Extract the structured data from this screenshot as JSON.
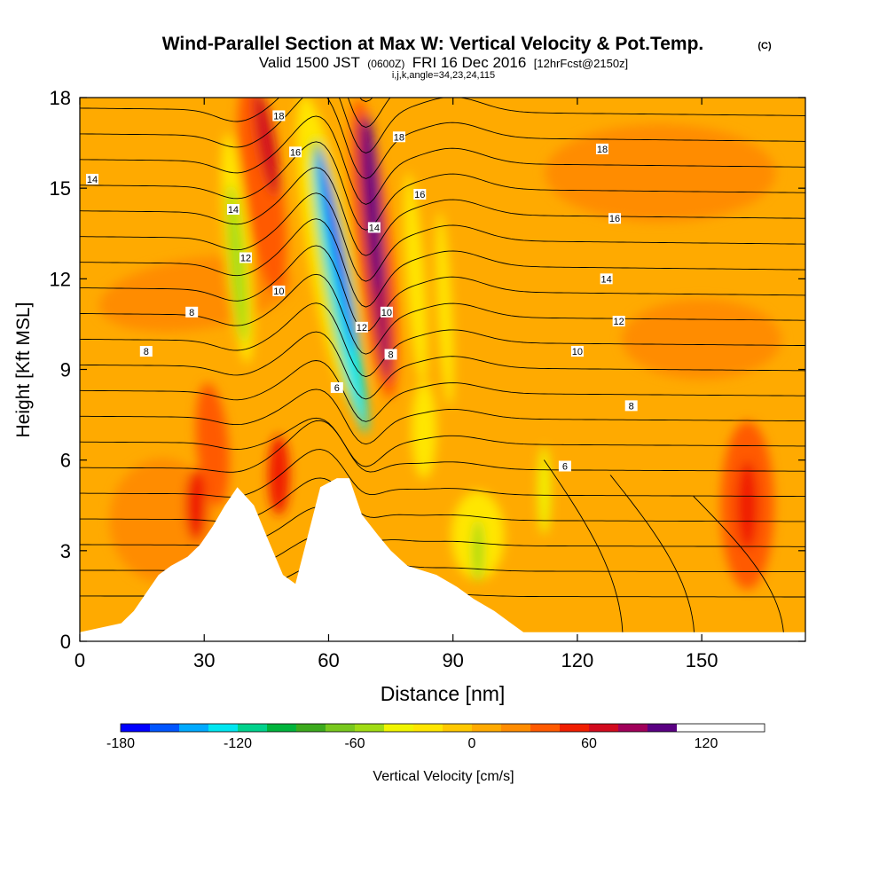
{
  "header": {
    "title": "Wind-Parallel Section at Max W: Vertical Velocity & Pot.Temp.",
    "copyright": "(C)",
    "valid_prefix": "Valid 1500 JST",
    "valid_utc": "(0600Z)",
    "valid_date": "FRI 16 Dec 2016",
    "forecast": "[12hrFcst@2150z]",
    "indices": "i,j,k,angle=34,23,24,115"
  },
  "chart_data": {
    "type": "heatmap",
    "xlabel": "Distance [nm]",
    "ylabel": "Height [Kft MSL]",
    "xlim": [
      0,
      175
    ],
    "ylim": [
      0,
      18
    ],
    "x_ticks": [
      "0",
      "30",
      "60",
      "90",
      "120",
      "150"
    ],
    "y_ticks": [
      "0",
      "3",
      "6",
      "9",
      "12",
      "15",
      "18"
    ],
    "colorbar": {
      "label": "Vertical Velocity [cm/s]",
      "tick_labels": [
        "-180",
        "-120",
        "-60",
        "0",
        "60",
        "120"
      ],
      "levels": [
        -180,
        -165,
        -150,
        -135,
        -120,
        -105,
        -90,
        -75,
        -60,
        -45,
        -30,
        -15,
        0,
        15,
        30,
        45,
        60,
        75,
        90,
        105,
        120,
        135,
        150
      ],
      "colors": [
        "#0000ff",
        "#0055ff",
        "#00aaff",
        "#00e6f0",
        "#00d28c",
        "#00b43c",
        "#3caa1e",
        "#78c81e",
        "#a0dc14",
        "#f0f500",
        "#ffe600",
        "#ffc800",
        "#ffaa00",
        "#ff8c00",
        "#ff5a00",
        "#f01e00",
        "#d20a1e",
        "#a0005a",
        "#5a0082"
      ]
    },
    "contours": {
      "variable": "Potential Temperature",
      "levels": [
        6,
        8,
        10,
        12,
        14,
        16,
        18
      ],
      "labels": [
        {
          "text": "18",
          "x": 48,
          "y": 17.4
        },
        {
          "text": "16",
          "x": 52,
          "y": 16.2
        },
        {
          "text": "14",
          "x": 3,
          "y": 15.3
        },
        {
          "text": "14",
          "x": 37,
          "y": 14.3
        },
        {
          "text": "12",
          "x": 40,
          "y": 12.7
        },
        {
          "text": "10",
          "x": 48,
          "y": 11.6
        },
        {
          "text": "8",
          "x": 27,
          "y": 10.9
        },
        {
          "text": "8",
          "x": 16,
          "y": 9.6
        },
        {
          "text": "18",
          "x": 77,
          "y": 16.7
        },
        {
          "text": "16",
          "x": 82,
          "y": 14.8
        },
        {
          "text": "14",
          "x": 71,
          "y": 13.7
        },
        {
          "text": "12",
          "x": 68,
          "y": 10.4
        },
        {
          "text": "10",
          "x": 74,
          "y": 10.9
        },
        {
          "text": "8",
          "x": 75,
          "y": 9.5
        },
        {
          "text": "6",
          "x": 62,
          "y": 8.4
        },
        {
          "text": "18",
          "x": 126,
          "y": 16.3
        },
        {
          "text": "16",
          "x": 129,
          "y": 14.0
        },
        {
          "text": "14",
          "x": 127,
          "y": 12.0
        },
        {
          "text": "12",
          "x": 130,
          "y": 10.6
        },
        {
          "text": "10",
          "x": 120,
          "y": 9.6
        },
        {
          "text": "8",
          "x": 133,
          "y": 7.8
        },
        {
          "text": "6",
          "x": 117,
          "y": 5.8
        }
      ]
    },
    "terrain": [
      [
        0,
        0.3
      ],
      [
        10,
        0.6
      ],
      [
        13,
        1.0
      ],
      [
        16,
        1.6
      ],
      [
        19,
        2.2
      ],
      [
        22,
        2.5
      ],
      [
        26,
        2.8
      ],
      [
        29,
        3.2
      ],
      [
        32,
        3.8
      ],
      [
        35,
        4.5
      ],
      [
        38,
        5.1
      ],
      [
        42,
        4.5
      ],
      [
        45,
        3.5
      ],
      [
        49,
        2.2
      ],
      [
        52,
        1.9
      ],
      [
        55,
        3.5
      ],
      [
        58,
        5.1
      ],
      [
        62,
        5.4
      ],
      [
        65,
        5.4
      ],
      [
        68,
        4.2
      ],
      [
        72,
        3.5
      ],
      [
        75,
        3.0
      ],
      [
        79,
        2.5
      ],
      [
        86,
        2.2
      ],
      [
        91,
        1.8
      ],
      [
        95,
        1.4
      ],
      [
        100,
        1.0
      ],
      [
        104,
        0.6
      ],
      [
        107,
        0.3
      ],
      [
        175,
        0.3
      ]
    ],
    "velocity_features": [
      {
        "kind": "updraft",
        "x": 71,
        "y": 14.0,
        "peak": 150
      },
      {
        "kind": "downdraft",
        "x": 63,
        "y": 11.0,
        "peak": -180
      },
      {
        "kind": "updraft",
        "x": 46,
        "y": 15.5,
        "peak": 75
      },
      {
        "kind": "downdraft",
        "x": 39,
        "y": 12.0,
        "peak": -60
      },
      {
        "kind": "updraft",
        "x": 161,
        "y": 4.5,
        "peak": 60
      },
      {
        "kind": "downdraft",
        "x": 112,
        "y": 5.0,
        "peak": -45
      },
      {
        "kind": "downdraft",
        "x": 95,
        "y": 4.0,
        "peak": -60
      }
    ]
  }
}
